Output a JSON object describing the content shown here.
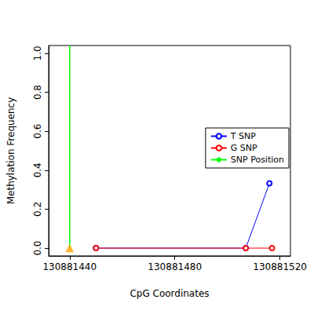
{
  "chart_data": {
    "type": "line",
    "x_label": "CpG Coordinates",
    "y_label": "Methylation Frequency",
    "xlim": [
      130881432,
      130881524
    ],
    "xticks": [
      130881440,
      130881480,
      130881520
    ],
    "ylim": [
      -0.04,
      1.04
    ],
    "yticks": [
      {
        "value": 0,
        "label": "0.0"
      },
      {
        "value": 0.2,
        "label": "0.2"
      },
      {
        "value": 0.4,
        "label": "0.4"
      },
      {
        "value": 0.6,
        "label": "0.6"
      },
      {
        "value": 0.8,
        "label": "0.8"
      },
      {
        "value": 1,
        "label": "1.0"
      }
    ],
    "grid": false,
    "legend": "right",
    "series": [
      {
        "name": "T SNP",
        "color": "#0000ff",
        "marker": "open_circle",
        "x": [
          130881450,
          130881507,
          130881516
        ],
        "values": [
          0,
          0,
          0.333
        ]
      },
      {
        "name": "G SNP",
        "color": "#ff0000",
        "marker": "open_circle",
        "x": [
          130881450,
          130881507,
          130881517
        ],
        "values": [
          0,
          0,
          0
        ]
      },
      {
        "name": "SNP Position",
        "color": "#00ff00",
        "marker": "none",
        "x": [
          130881440,
          130881440
        ],
        "values": [
          0,
          1.04
        ]
      }
    ],
    "markers": [
      {
        "x": 130881440,
        "y": 0,
        "color": "#ffa500",
        "marker": "triangle"
      }
    ]
  }
}
